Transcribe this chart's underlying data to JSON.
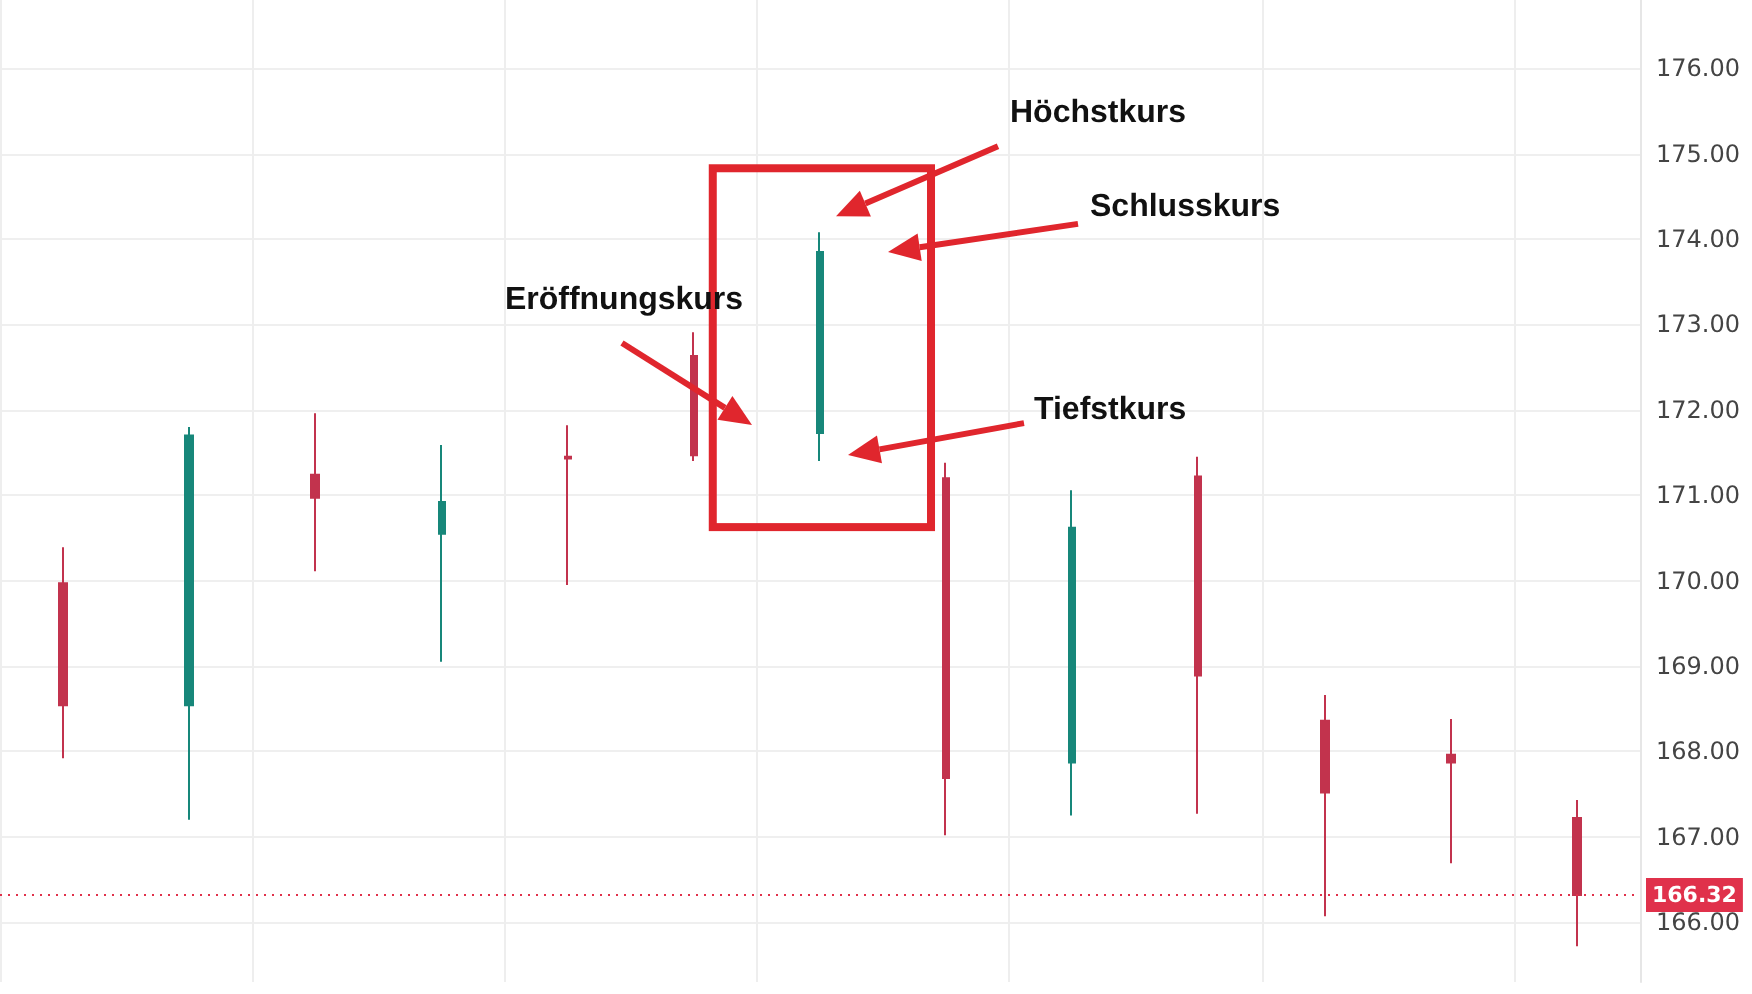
{
  "chart_data": {
    "type": "candlestick",
    "categories": [
      null,
      null,
      null,
      null,
      null,
      null,
      null,
      null,
      null,
      null,
      null,
      null,
      null
    ],
    "ohlc": [
      [
        169.97,
        170.39,
        167.92,
        168.54
      ],
      [
        168.54,
        171.8,
        167.2,
        171.7
      ],
      [
        171.24,
        171.96,
        170.11,
        170.97
      ],
      [
        170.55,
        171.59,
        169.05,
        170.92
      ],
      [
        171.45,
        171.82,
        169.95,
        171.43
      ],
      [
        172.63,
        172.91,
        171.4,
        171.47
      ],
      [
        171.73,
        174.08,
        171.4,
        173.85
      ],
      [
        171.2,
        171.38,
        167.02,
        167.69
      ],
      [
        167.87,
        171.06,
        167.25,
        170.62
      ],
      [
        171.22,
        171.45,
        167.27,
        168.89
      ],
      [
        168.36,
        168.66,
        166.07,
        167.52
      ],
      [
        167.96,
        168.38,
        166.69,
        167.87
      ],
      [
        167.22,
        167.43,
        165.72,
        166.32
      ]
    ],
    "colors": [
      "#c2334d",
      "#17877a",
      "#c2334d",
      "#17877a",
      "#c2334d",
      "#c2334d",
      "#17877a",
      "#c2334d",
      "#17877a",
      "#c2334d",
      "#c2334d",
      "#c2334d",
      "#c2334d"
    ],
    "ylim": [
      165.3,
      176.8
    ],
    "yticks": [
      {
        "value": 166,
        "label": "166.00"
      },
      {
        "value": 167,
        "label": "167.00"
      },
      {
        "value": 168,
        "label": "168.00"
      },
      {
        "value": 169,
        "label": "169.00"
      },
      {
        "value": 170,
        "label": "170.00"
      },
      {
        "value": 171,
        "label": "171.00"
      },
      {
        "value": 172,
        "label": "172.00"
      },
      {
        "value": 173,
        "label": "173.00"
      },
      {
        "value": 174,
        "label": "174.00"
      },
      {
        "value": 175,
        "label": "175.00"
      },
      {
        "value": 176,
        "label": "176.00"
      }
    ],
    "grid": true,
    "tick_labels": "y",
    "ref_lines": [
      {
        "axis": "y",
        "value": 166.32,
        "label": "166.32",
        "color": "#e0314b",
        "line_style": "dotted"
      }
    ],
    "annotations": [
      "Höchstkurs",
      "Schlusskurs",
      "Eröffnungskurs",
      "Tiefstkurs"
    ]
  }
}
